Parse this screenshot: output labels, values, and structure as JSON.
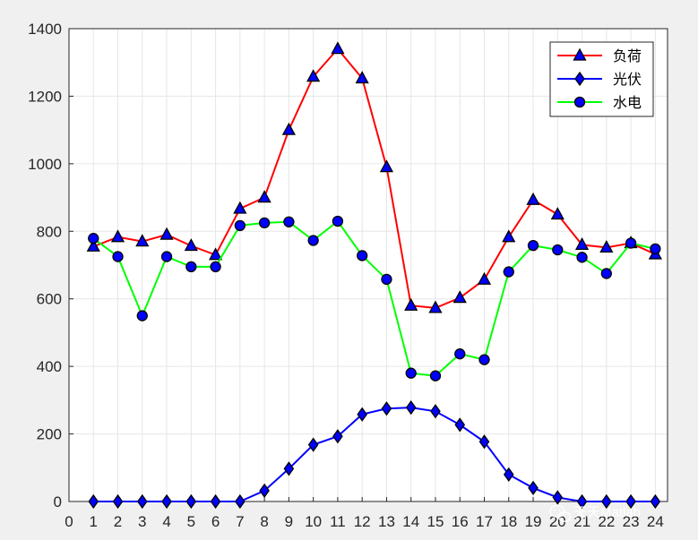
{
  "chart_data": {
    "type": "line",
    "title": "",
    "xlabel": "",
    "ylabel": "",
    "xlim": [
      0,
      24.5
    ],
    "ylim": [
      0,
      1400
    ],
    "x_ticks": [
      "0",
      "1",
      "2",
      "3",
      "4",
      "5",
      "6",
      "7",
      "8",
      "9",
      "10",
      "11",
      "12",
      "13",
      "14",
      "15",
      "16",
      "17",
      "18",
      "19",
      "20",
      "21",
      "22",
      "23",
      "24"
    ],
    "y_ticks": [
      "0",
      "200",
      "400",
      "600",
      "800",
      "1000",
      "1200",
      "1400"
    ],
    "grid": true,
    "legend_position": "top-right",
    "x": [
      1,
      2,
      3,
      4,
      5,
      6,
      7,
      8,
      9,
      10,
      11,
      12,
      13,
      14,
      15,
      16,
      17,
      18,
      19,
      20,
      21,
      22,
      23,
      24
    ],
    "series": [
      {
        "name": "负荷",
        "color": "#ff0000",
        "marker": "triangle",
        "values": [
          755,
          783,
          770,
          790,
          757,
          730,
          867,
          900,
          1100,
          1258,
          1340,
          1253,
          990,
          580,
          573,
          603,
          657,
          783,
          893,
          850,
          760,
          752,
          765,
          732
        ]
      },
      {
        "name": "光伏",
        "color": "#0000ff",
        "marker": "diamond",
        "values": [
          0,
          0,
          0,
          0,
          0,
          0,
          0,
          32,
          97,
          168,
          193,
          258,
          275,
          278,
          267,
          227,
          177,
          80,
          40,
          12,
          0,
          0,
          0,
          0
        ]
      },
      {
        "name": "水电",
        "color": "#00ff00",
        "marker": "circle",
        "values": [
          779,
          725,
          550,
          725,
          695,
          695,
          817,
          825,
          828,
          773,
          830,
          728,
          658,
          380,
          372,
          437,
          420,
          680,
          758,
          745,
          723,
          675,
          765,
          748
        ]
      }
    ]
  },
  "watermark": {
    "text": "天天Matlab",
    "icon": "wechat-icon"
  },
  "colors": {
    "figure_background": "#f0f0f0",
    "axes_background": "#ffffff",
    "grid": "#e6e6e6",
    "axis_line": "#262626",
    "marker_fill": "#0000ff",
    "marker_edge": "#000000"
  }
}
